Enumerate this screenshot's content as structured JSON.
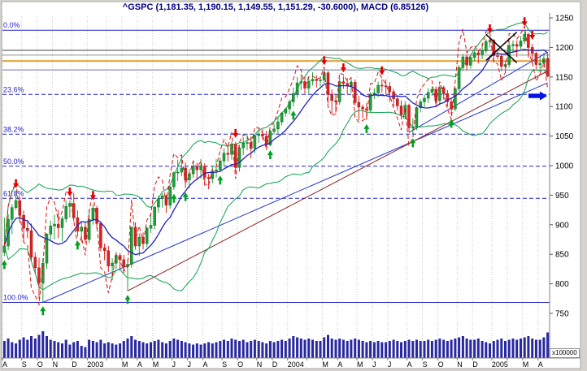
{
  "chart_title": "^GSPC (1,181.35, 1,190.15, 1,149.55, 1,151.29, -30.6000), MACD (6.85126)",
  "volume_scale_label": "x100000",
  "colors": {
    "background": "#d6d3ce",
    "panel": "#ffffff",
    "title": "#000080",
    "up_candle": "#1fa137",
    "up_candle_edge": "#116622",
    "down_candle": "#e02020",
    "down_candle_edge": "#902020",
    "ma_blue": "#2020c0",
    "ma_red": "#e01010",
    "band_green": "#0fa04e",
    "fib_blue": "#2222cc",
    "grid": "#c8c8c8",
    "volume": "#2828a0",
    "axis_line": "#808080",
    "axis_text": "#000000",
    "right_arrow_blue": "#0013e6",
    "arrow_down_red": "#e00000",
    "arrow_up_green": "#00a020"
  },
  "price_axis": {
    "ticks": [
      1250,
      1200,
      1150,
      1100,
      1050,
      1000,
      950,
      900,
      850,
      800,
      750
    ]
  },
  "fibonacci_levels": [
    {
      "label": "0.0%",
      "price": 1229.1,
      "style": "solid"
    },
    {
      "label": "23.6%",
      "price": 1120.4,
      "style": "dashed"
    },
    {
      "label": "38.2%",
      "price": 1053.2,
      "style": "dashed"
    },
    {
      "label": "50.0%",
      "price": 998.9,
      "style": "dashed"
    },
    {
      "label": "61.8%",
      "price": 944.6,
      "style": "dashed"
    },
    {
      "label": "100.0%",
      "price": 768.6,
      "style": "solid"
    }
  ],
  "horizontal_lines": [
    {
      "price": 1195,
      "color": "#444444",
      "width": 1
    },
    {
      "price": 1187,
      "color": "#909090",
      "width": 1
    },
    {
      "price": 1177,
      "color": "#e8a23c",
      "width": 2
    },
    {
      "price": 1162,
      "color": "#6677aa",
      "width": 1
    }
  ],
  "trend_lines": [
    {
      "w1": 10,
      "p1": 768.6,
      "w2": 141,
      "p2": 1140,
      "color": "#2233cc",
      "width": 1,
      "top": false
    },
    {
      "w1": 32,
      "p1": 788,
      "w2": 141,
      "p2": 1160,
      "color": "#8b2222",
      "width": 1,
      "top": false
    },
    {
      "w1": 105,
      "p1": 1056,
      "w2": 141,
      "p2": 1192,
      "color": "#2233cc",
      "width": 1,
      "top": false
    },
    {
      "w1": 125,
      "p1": 1222,
      "w2": 133,
      "p2": 1174,
      "color": "#000000",
      "width": 1.5,
      "top": true
    },
    {
      "w1": 125,
      "p1": 1178,
      "w2": 133,
      "p2": 1226,
      "color": "#000000",
      "width": 1.5,
      "top": true
    }
  ],
  "signal_arrows": {
    "down_weeks": [
      3,
      17,
      23,
      60,
      83,
      88,
      98,
      126,
      135,
      137
    ],
    "up_weeks": [
      0,
      10,
      19,
      32,
      44,
      47,
      56,
      69,
      75,
      94,
      106,
      116
    ]
  },
  "right_arrow": {
    "price": 1118
  },
  "x_axis": {
    "months": [
      {
        "label": "A",
        "weeks": 5
      },
      {
        "label": "S",
        "weeks": 4
      },
      {
        "label": "O",
        "weeks": 4
      },
      {
        "label": "N",
        "weeks": 5
      },
      {
        "label": "D",
        "weeks": 4
      },
      {
        "label": "2003",
        "weeks": 5
      },
      {
        "label": "",
        "weeks": 4
      },
      {
        "label": "M",
        "weeks": 4
      },
      {
        "label": "A",
        "weeks": 4
      },
      {
        "label": "M",
        "weeks": 5
      },
      {
        "label": "J",
        "weeks": 4
      },
      {
        "label": "J",
        "weeks": 4
      },
      {
        "label": "A",
        "weeks": 5
      },
      {
        "label": "S",
        "weeks": 4
      },
      {
        "label": "O",
        "weeks": 5
      },
      {
        "label": "N",
        "weeks": 4
      },
      {
        "label": "D",
        "weeks": 4
      },
      {
        "label": "2004",
        "weeks": 5
      },
      {
        "label": "",
        "weeks": 4
      },
      {
        "label": "M",
        "weeks": 4
      },
      {
        "label": "A",
        "weeks": 5
      },
      {
        "label": "M",
        "weeks": 4
      },
      {
        "label": "J",
        "weeks": 4
      },
      {
        "label": "J",
        "weeks": 5
      },
      {
        "label": "A",
        "weeks": 4
      },
      {
        "label": "S",
        "weeks": 4
      },
      {
        "label": "O",
        "weeks": 5
      },
      {
        "label": "N",
        "weeks": 4
      },
      {
        "label": "D",
        "weeks": 5
      },
      {
        "label": "2005",
        "weeks": 4
      },
      {
        "label": "",
        "weeks": 4
      },
      {
        "label": "M",
        "weeks": 4
      },
      {
        "label": "A",
        "weeks": 3
      }
    ]
  },
  "overlays": {
    "sma_blue_period": 10,
    "red_projection": {
      "base_sma": 5,
      "factor": 1,
      "clip_min": 765,
      "clip_max": 1248
    },
    "bollinger": {
      "period": 20,
      "stdev": 2
    }
  },
  "chart_data": {
    "type": "candlestick",
    "symbol": "^GSPC",
    "interval": "weekly",
    "title": "^GSPC (1,181.35, 1,190.15, 1,149.55, 1,151.29, -30.6000), MACD (6.85126)",
    "last_bar": {
      "open": 1181.35,
      "high": 1190.15,
      "low": 1149.55,
      "close": 1151.29,
      "change": -30.6
    },
    "macd_value": 6.85126,
    "ylim": [
      745,
      1255
    ],
    "volume_unit": "x100000",
    "candles": [
      [
        853,
        912,
        847,
        864
      ],
      [
        864,
        918,
        857,
        909
      ],
      [
        909,
        935,
        884,
        929
      ],
      [
        929,
        955,
        925,
        941
      ],
      [
        941,
        948,
        903,
        916
      ],
      [
        916,
        924,
        870,
        894
      ],
      [
        894,
        908,
        877,
        890
      ],
      [
        890,
        902,
        839,
        845
      ],
      [
        845,
        853,
        817,
        827
      ],
      [
        827,
        844,
        775,
        801
      ],
      [
        801,
        843,
        769,
        835
      ],
      [
        835,
        886,
        825,
        884
      ],
      [
        884,
        907,
        872,
        898
      ],
      [
        898,
        917,
        875,
        901
      ],
      [
        901,
        925,
        877,
        895
      ],
      [
        895,
        915,
        872,
        910
      ],
      [
        910,
        941,
        904,
        931
      ],
      [
        931,
        941,
        912,
        936
      ],
      [
        936,
        954,
        906,
        912
      ],
      [
        912,
        924,
        880,
        889
      ],
      [
        889,
        905,
        870,
        896
      ],
      [
        896,
        903,
        869,
        875
      ],
      [
        875,
        925,
        869,
        909
      ],
      [
        909,
        935,
        900,
        928
      ],
      [
        928,
        932,
        893,
        902
      ],
      [
        902,
        906,
        855,
        861
      ],
      [
        861,
        868,
        840,
        856
      ],
      [
        856,
        864,
        820,
        830
      ],
      [
        830,
        843,
        806,
        835
      ],
      [
        835,
        854,
        825,
        848
      ],
      [
        848,
        852,
        826,
        841
      ],
      [
        841,
        849,
        818,
        829
      ],
      [
        829,
        841,
        788,
        833
      ],
      [
        833,
        896,
        827,
        896
      ],
      [
        896,
        904,
        858,
        864
      ],
      [
        864,
        885,
        847,
        879
      ],
      [
        879,
        887,
        858,
        868
      ],
      [
        868,
        897,
        862,
        894
      ],
      [
        894,
        919,
        886,
        899
      ],
      [
        899,
        931,
        892,
        930
      ],
      [
        930,
        949,
        920,
        944
      ],
      [
        944,
        953,
        929,
        949
      ],
      [
        949,
        951,
        920,
        933
      ],
      [
        933,
        965,
        927,
        964
      ],
      [
        964,
        990,
        959,
        988
      ],
      [
        988,
        1010,
        974,
        989
      ],
      [
        989,
        1015,
        982,
        996
      ],
      [
        996,
        1005,
        962,
        976
      ],
      [
        976,
        994,
        962,
        986
      ],
      [
        986,
        1009,
        979,
        998
      ],
      [
        998,
        1005,
        975,
        993
      ],
      [
        993,
        1011,
        978,
        999
      ],
      [
        999,
        1004,
        966,
        980
      ],
      [
        980,
        986,
        960,
        978
      ],
      [
        978,
        1000,
        970,
        991
      ],
      [
        991,
        1011,
        980,
        993
      ],
      [
        993,
        1014,
        990,
        1008
      ],
      [
        1008,
        1029,
        1000,
        1021
      ],
      [
        1021,
        1032,
        1007,
        1019
      ],
      [
        1019,
        1040,
        1010,
        1036
      ],
      [
        1036,
        1040,
        990,
        997
      ],
      [
        997,
        1034,
        990,
        1030
      ],
      [
        1030,
        1048,
        1018,
        1038
      ],
      [
        1038,
        1054,
        1026,
        1039
      ],
      [
        1039,
        1049,
        1012,
        1029
      ],
      [
        1029,
        1053,
        1021,
        1051
      ],
      [
        1051,
        1063,
        1038,
        1053
      ],
      [
        1053,
        1062,
        1043,
        1050
      ],
      [
        1050,
        1059,
        1031,
        1035
      ],
      [
        1035,
        1060,
        1033,
        1058
      ],
      [
        1058,
        1070,
        1053,
        1062
      ],
      [
        1062,
        1083,
        1054,
        1074
      ],
      [
        1074,
        1091,
        1068,
        1089
      ],
      [
        1089,
        1098,
        1083,
        1096
      ],
      [
        1096,
        1112,
        1087,
        1108
      ],
      [
        1108,
        1132,
        1100,
        1122
      ],
      [
        1122,
        1150,
        1115,
        1140
      ],
      [
        1140,
        1155,
        1128,
        1142
      ],
      [
        1142,
        1150,
        1122,
        1131
      ],
      [
        1131,
        1149,
        1122,
        1143
      ],
      [
        1143,
        1158,
        1136,
        1146
      ],
      [
        1146,
        1153,
        1132,
        1144
      ],
      [
        1144,
        1151,
        1134,
        1145
      ],
      [
        1145,
        1163,
        1140,
        1157
      ],
      [
        1157,
        1160,
        1105,
        1121
      ],
      [
        1121,
        1129,
        1087,
        1110
      ],
      [
        1110,
        1121,
        1090,
        1108
      ],
      [
        1108,
        1148,
        1103,
        1142
      ],
      [
        1142,
        1151,
        1130,
        1139
      ],
      [
        1139,
        1148,
        1121,
        1135
      ],
      [
        1135,
        1147,
        1123,
        1141
      ],
      [
        1141,
        1146,
        1102,
        1107
      ],
      [
        1107,
        1118,
        1077,
        1099
      ],
      [
        1099,
        1103,
        1080,
        1096
      ],
      [
        1096,
        1106,
        1077,
        1094
      ],
      [
        1094,
        1124,
        1089,
        1121
      ],
      [
        1121,
        1131,
        1113,
        1123
      ],
      [
        1123,
        1142,
        1116,
        1136
      ],
      [
        1136,
        1146,
        1124,
        1135
      ],
      [
        1135,
        1146,
        1120,
        1134
      ],
      [
        1134,
        1141,
        1108,
        1125
      ],
      [
        1125,
        1130,
        1100,
        1113
      ],
      [
        1113,
        1119,
        1093,
        1101
      ],
      [
        1101,
        1110,
        1078,
        1086
      ],
      [
        1086,
        1109,
        1078,
        1102
      ],
      [
        1102,
        1105,
        1056,
        1064
      ],
      [
        1064,
        1080,
        1053,
        1065
      ],
      [
        1065,
        1100,
        1060,
        1098
      ],
      [
        1098,
        1112,
        1090,
        1108
      ],
      [
        1108,
        1120,
        1099,
        1114
      ],
      [
        1114,
        1131,
        1106,
        1124
      ],
      [
        1124,
        1134,
        1118,
        1129
      ],
      [
        1129,
        1134,
        1101,
        1110
      ],
      [
        1110,
        1136,
        1102,
        1132
      ],
      [
        1132,
        1135,
        1112,
        1122
      ],
      [
        1122,
        1128,
        1100,
        1108
      ],
      [
        1108,
        1114,
        1086,
        1096
      ],
      [
        1096,
        1132,
        1092,
        1130
      ],
      [
        1130,
        1170,
        1126,
        1166
      ],
      [
        1166,
        1189,
        1160,
        1184
      ],
      [
        1184,
        1188,
        1161,
        1170
      ],
      [
        1170,
        1186,
        1164,
        1183
      ],
      [
        1183,
        1197,
        1176,
        1191
      ],
      [
        1191,
        1196,
        1173,
        1188
      ],
      [
        1188,
        1207,
        1180,
        1194
      ],
      [
        1194,
        1214,
        1190,
        1210
      ],
      [
        1210,
        1217,
        1200,
        1212
      ],
      [
        1212,
        1214,
        1175,
        1186
      ],
      [
        1186,
        1195,
        1180,
        1185
      ],
      [
        1185,
        1188,
        1160,
        1168
      ],
      [
        1168,
        1177,
        1159,
        1171
      ],
      [
        1171,
        1212,
        1166,
        1203
      ],
      [
        1203,
        1212,
        1191,
        1205
      ],
      [
        1205,
        1212,
        1184,
        1202
      ],
      [
        1202,
        1219,
        1197,
        1211
      ],
      [
        1211,
        1229,
        1206,
        1222
      ],
      [
        1222,
        1225,
        1183,
        1200
      ],
      [
        1200,
        1206,
        1172,
        1190
      ],
      [
        1190,
        1192,
        1163,
        1171
      ],
      [
        1171,
        1184,
        1163,
        1173
      ],
      [
        1173,
        1191,
        1166,
        1181
      ],
      [
        1181.35,
        1190.15,
        1149.55,
        1151.29
      ]
    ],
    "volumes": [
      14,
      16,
      13,
      12,
      15,
      17,
      15,
      18,
      16,
      19,
      22,
      18,
      15,
      14,
      13,
      12,
      15,
      11,
      13,
      14,
      10,
      9,
      15,
      14,
      13,
      15,
      12,
      13,
      12,
      11,
      12,
      14,
      16,
      18,
      15,
      14,
      13,
      12,
      13,
      14,
      15,
      13,
      12,
      14,
      16,
      15,
      14,
      13,
      12,
      11,
      12,
      11,
      12,
      13,
      12,
      13,
      14,
      15,
      14,
      16,
      15,
      14,
      15,
      13,
      14,
      15,
      14,
      13,
      12,
      14,
      13,
      14,
      15,
      14,
      16,
      18,
      17,
      16,
      15,
      16,
      15,
      14,
      14,
      17,
      19,
      16,
      15,
      16,
      15,
      14,
      15,
      16,
      15,
      14,
      13,
      14,
      13,
      14,
      13,
      13,
      14,
      15,
      14,
      13,
      14,
      15,
      14,
      15,
      14,
      14,
      15,
      14,
      15,
      16,
      15,
      14,
      15,
      16,
      17,
      18,
      16,
      15,
      15,
      16,
      14,
      13,
      12,
      14,
      15,
      16,
      14,
      15,
      16,
      15,
      16,
      17,
      18,
      16,
      15,
      15,
      17,
      21
    ]
  }
}
